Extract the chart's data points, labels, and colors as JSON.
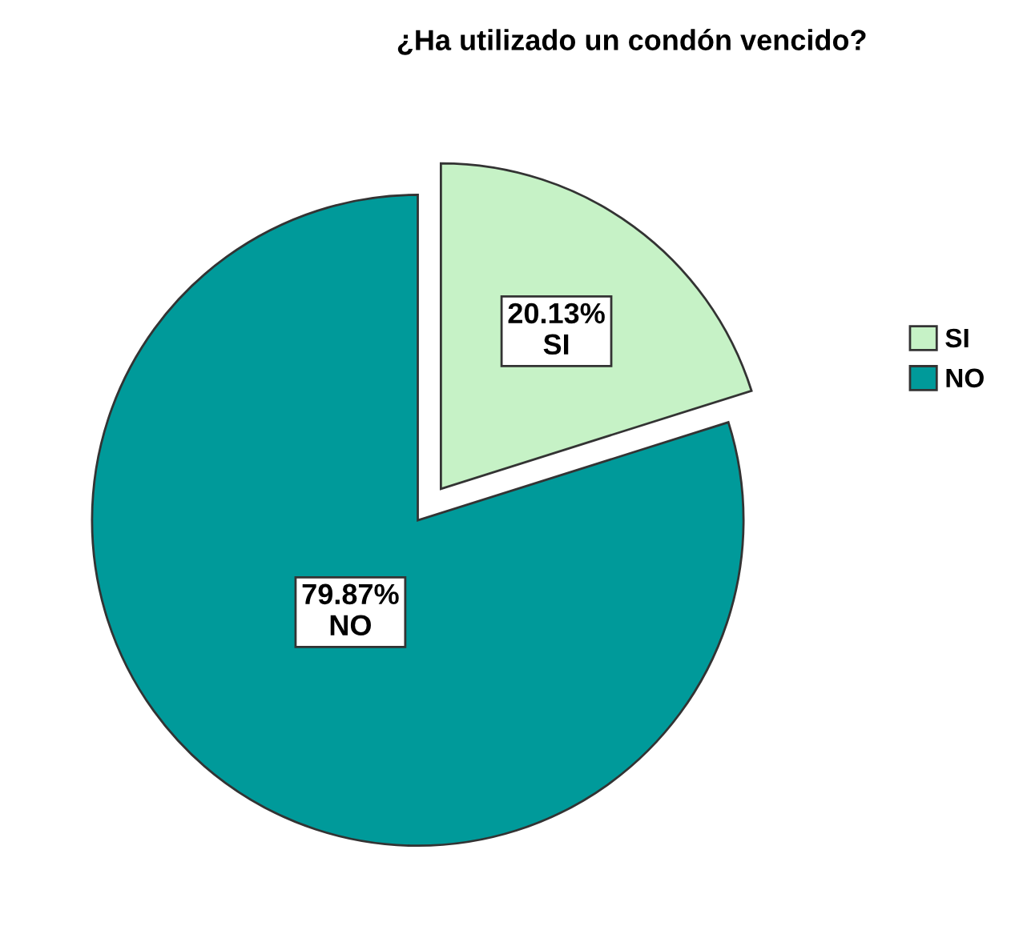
{
  "chart_data": {
    "type": "pie",
    "title": "¿Ha utilizado un condón vencido?",
    "categories": [
      "SI",
      "NO"
    ],
    "values": [
      20.13,
      79.87
    ],
    "colors": [
      "#c6f2c6",
      "#009a9a"
    ],
    "value_labels": [
      "20.13%\nSI",
      "79.87%\nNO"
    ],
    "legend": "right"
  }
}
